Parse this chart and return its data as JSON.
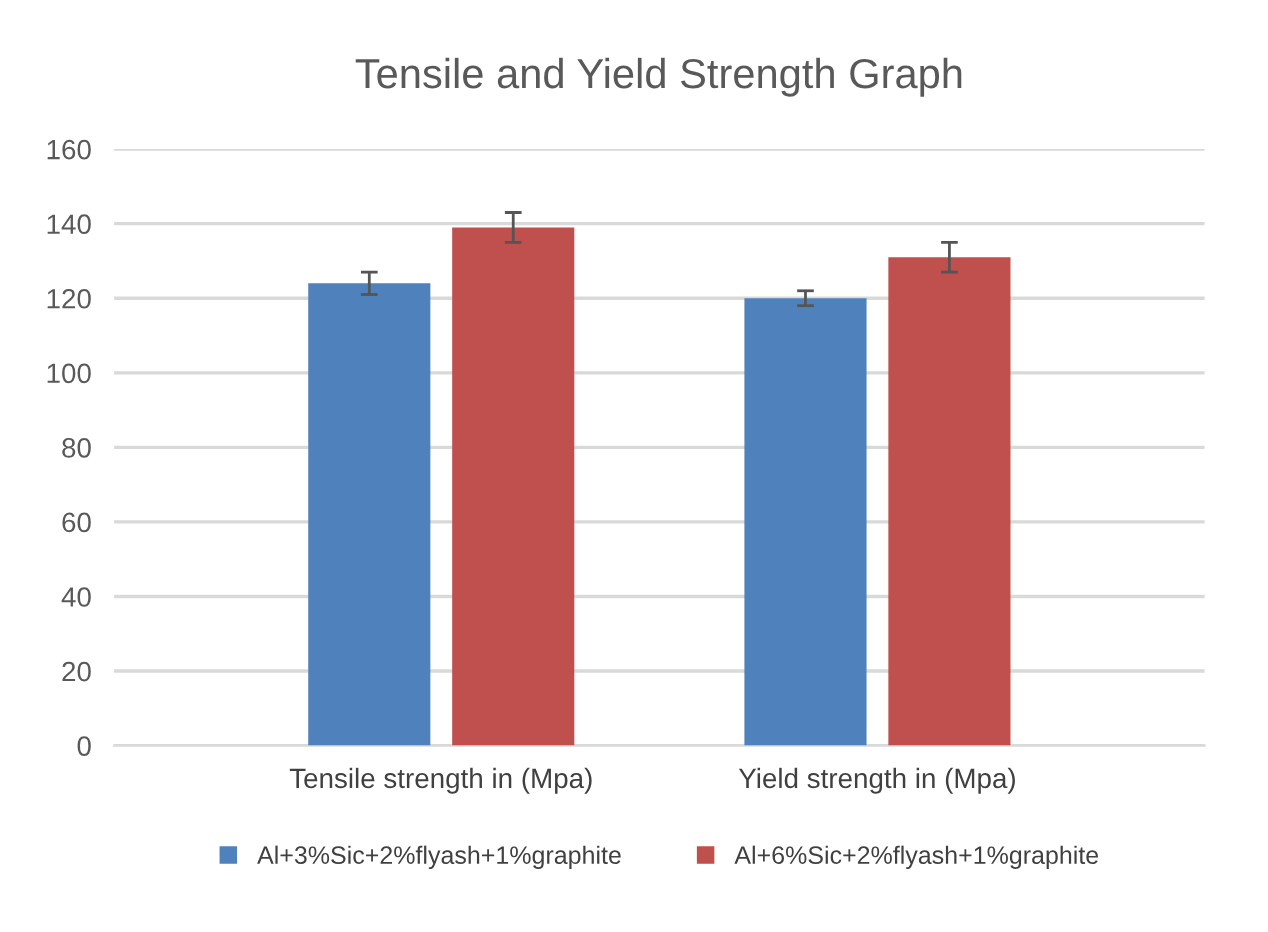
{
  "chart_data": {
    "type": "bar",
    "title": "Tensile and Yield Strength Graph",
    "categories": [
      "Tensile strength in (Mpa)",
      "Yield strength in (Mpa)"
    ],
    "series": [
      {
        "name": "Al+3%Sic+2%flyash+1%graphite",
        "color": "#4f81bd",
        "values": [
          124,
          120
        ],
        "errors": [
          3,
          2
        ]
      },
      {
        "name": "Al+6%Sic+2%flyash+1%graphite",
        "color": "#c0504d",
        "values": [
          139,
          131
        ],
        "errors": [
          4,
          4
        ]
      }
    ],
    "ylim": [
      0,
      160
    ],
    "yticks": [
      0,
      20,
      40,
      60,
      80,
      100,
      120,
      140,
      160
    ],
    "grid": "y",
    "legend": "bottom"
  }
}
